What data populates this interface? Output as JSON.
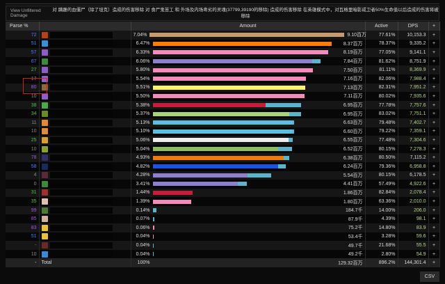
{
  "banner": {
    "view_unfiltered": "View Unfiltered Damage",
    "message": "对 蹒跚的血僵尸（除了坦克）造成的伤害移除 对 食尸鬼苦工 和 外场及内场卑劣的灵魂(37799,39190的移除) 造成的伤害移除 在英雄模式中，对瓦格里暗影戒卫者50%生命值以后造成的伤害将被移除"
  },
  "headers": {
    "parse": "Parse %",
    "amount": "Amount",
    "active": "Active",
    "dps": "DPS",
    "plus": "+"
  },
  "colors": {
    "pet": "#5bb4cc",
    "blue": "#4a7fff",
    "green": "#4cc34c",
    "purple": "#a05ee0",
    "gray": "#888"
  },
  "max_amount": 9.1,
  "rows": [
    {
      "parse": "72",
      "pc": "blue",
      "icon": "#b5401c",
      "pct": "7.04%",
      "amount": "9.10百万",
      "val": 9.1,
      "color": "#c69b6d",
      "pet": 0,
      "active": "77.61%",
      "dps": "10,153.3",
      "dg": false
    },
    {
      "parse": "51",
      "pc": "blue",
      "icon": "#3b8ed8",
      "pct": "6.47%",
      "amount": "8.37百万",
      "val": 8.37,
      "color": "#ff7c0a",
      "pet": 0,
      "active": "78.37%",
      "dps": "9,335.2",
      "dg": false
    },
    {
      "parse": "57",
      "pc": "blue",
      "icon": "#8c5fc8",
      "pct": "6.33%",
      "amount": "8.19百万",
      "val": 8.19,
      "color": "#f48cba",
      "pet": 0,
      "active": "77.05%",
      "dps": "9,141.1",
      "dg": false
    },
    {
      "parse": "67",
      "pc": "blue",
      "icon": "#3a8a3a",
      "pct": "6.06%",
      "amount": "7.84百万",
      "val": 7.84,
      "color": "#8f7fd0",
      "pet": 0.05,
      "active": "81.62%",
      "dps": "8,751.9",
      "dg": false
    },
    {
      "parse": "27",
      "pc": "green",
      "icon": "#8c5fc8",
      "pct": "5.80%",
      "amount": "7.50百万",
      "val": 7.5,
      "color": "#f48cba",
      "pet": 0,
      "active": "81.11%",
      "dps": "8,369.9",
      "dg": true
    },
    {
      "parse": "17",
      "pc": "gray",
      "icon": "#8c5fc8",
      "pct": "5.54%",
      "amount": "7.16百万",
      "val": 7.16,
      "color": "#f48cba",
      "pet": 0,
      "active": "82.06%",
      "dps": "7,988.4",
      "dg": true
    },
    {
      "parse": "80",
      "pc": "purple",
      "icon": "#8a6a3a",
      "pct": "5.51%",
      "amount": "7.13百万",
      "val": 7.13,
      "color": "#fff468",
      "pet": 0,
      "active": "82.31%",
      "dps": "7,951.2",
      "dg": true
    },
    {
      "parse": "10",
      "pc": "gray",
      "icon": "#8c5fc8",
      "pct": "5.50%",
      "amount": "7.11百万",
      "val": 7.11,
      "color": "#f48cba",
      "pet": 0,
      "active": "80.02%",
      "dps": "7,935.6",
      "dg": true
    },
    {
      "parse": "38",
      "pc": "green",
      "icon": "#4caa4c",
      "pct": "5.38%",
      "amount": "6.95百万",
      "val": 6.95,
      "color": "#c41e3a",
      "pet": 0.24,
      "active": "77.78%",
      "dps": "7,757.6",
      "dg": true
    },
    {
      "parse": "34",
      "pc": "green",
      "icon": "#6a8a2a",
      "pct": "5.37%",
      "amount": "6.95百万",
      "val": 6.95,
      "color": "#aad372",
      "pet": 0.08,
      "active": "83.02%",
      "dps": "7,751.1",
      "dg": true
    },
    {
      "parse": "11",
      "pc": "gray",
      "icon": "#e08a3a",
      "pct": "5.13%",
      "amount": "6.63百万",
      "val": 6.63,
      "color": "#5bc0e0",
      "pet": 0.01,
      "active": "79.48%",
      "dps": "7,402.7",
      "dg": true
    },
    {
      "parse": "10",
      "pc": "gray",
      "icon": "#e08a3a",
      "pct": "5.10%",
      "amount": "6.60百万",
      "val": 6.6,
      "color": "#5bc0e0",
      "pet": 0.01,
      "active": "79.22%",
      "dps": "7,359.1",
      "dg": true
    },
    {
      "parse": "25",
      "pc": "green",
      "icon": "#d8a030",
      "pct": "5.06%",
      "amount": "6.55百万",
      "val": 6.55,
      "color": "#eeeeee",
      "pet": 0.03,
      "active": "77.48%",
      "dps": "7,304.6",
      "dg": true
    },
    {
      "parse": "10",
      "pc": "gray",
      "icon": "#8aa030",
      "pct": "5.04%",
      "amount": "6.52百万",
      "val": 6.52,
      "color": "#8fbf5a",
      "pet": 0.1,
      "active": "80.15%",
      "dps": "7,278.3",
      "dg": true
    },
    {
      "parse": "78",
      "pc": "purple",
      "icon": "#30306a",
      "pct": "4.93%",
      "amount": "6.38百万",
      "val": 6.38,
      "color": "#ee7a10",
      "pet": 0.04,
      "active": "80.50%",
      "dps": "7,115.2",
      "dg": false
    },
    {
      "parse": "58",
      "pc": "blue",
      "icon": "#1a2a5a",
      "pct": "4.82%",
      "amount": "6.24百万",
      "val": 6.24,
      "color": "#1f52e0",
      "pet": 0.06,
      "active": "79.36%",
      "dps": "6,958.8",
      "dg": true
    },
    {
      "parse": "4",
      "pc": "gray",
      "icon": "#5a2a3a",
      "pct": "4.28%",
      "amount": "5.54百万",
      "val": 5.54,
      "color": "#8f7fd0",
      "pet": 0.2,
      "active": "80.15%",
      "dps": "6,178.5",
      "dg": false
    },
    {
      "parse": "0",
      "pc": "gray",
      "icon": "#3a8a3a",
      "pct": "3.41%",
      "amount": "4.41百万",
      "val": 4.41,
      "color": "#8f7fd0",
      "pet": 0.1,
      "active": "57.49%",
      "dps": "4,922.6",
      "dg": true
    },
    {
      "parse": "31",
      "pc": "green",
      "icon": "#a03030",
      "pct": "1.44%",
      "amount": "1.86百万",
      "val": 1.86,
      "color": "#c41e3a",
      "pet": 0,
      "active": "82.84%",
      "dps": "2,078.4",
      "dg": true
    },
    {
      "parse": "35",
      "pc": "green",
      "icon": "#e0c0b0",
      "pct": "1.39%",
      "amount": "1.80百万",
      "val": 1.8,
      "color": "#f48cba",
      "pet": 0,
      "active": "63.36%",
      "dps": "2,010.0",
      "dg": true
    },
    {
      "parse": "99",
      "pc": "purple",
      "icon": "#4a7a3a",
      "pct": "0.14%",
      "amount": "184.7千",
      "val": 0.1847,
      "color": "#5bb4cc",
      "pet": 0,
      "active": "14.00%",
      "dps": "206.0",
      "dg": true
    },
    {
      "parse": "85",
      "pc": "purple",
      "icon": "#d0b0a0",
      "pct": "0.07%",
      "amount": "87.9千",
      "val": 0.0879,
      "color": "#5bb4cc",
      "pet": 0,
      "active": "4.39%",
      "dps": "98.1",
      "dg": true
    },
    {
      "parse": "83",
      "pc": "purple",
      "icon": "#e8c040",
      "pct": "0.06%",
      "amount": "75.2千",
      "val": 0.0752,
      "color": "#f48cba",
      "pet": 0,
      "active": "14.80%",
      "dps": "83.9",
      "dg": true
    },
    {
      "parse": "51",
      "pc": "blue",
      "icon": "#e8c040",
      "pct": "0.04%",
      "amount": "53.4千",
      "val": 0.0534,
      "color": "#f48cba",
      "pet": 0,
      "active": "3.28%",
      "dps": "59.6",
      "dg": true
    },
    {
      "parse": "-",
      "pc": "gray",
      "icon": "#6a2a2a",
      "pct": "0.04%",
      "amount": "49.7千",
      "val": 0.0497,
      "color": "#5bb4cc",
      "pet": 0,
      "active": "21.68%",
      "dps": "55.5",
      "dg": true
    },
    {
      "parse": "10",
      "pc": "gray",
      "icon": "#3a8ad8",
      "pct": "0.04%",
      "amount": "49.2千",
      "val": 0.0492,
      "color": "#5bb4cc",
      "pet": 0,
      "active": "2.80%",
      "dps": "54.9",
      "dg": true
    }
  ],
  "total": {
    "parse": "-",
    "name": "Total",
    "pct": "100%",
    "amount": "129.32百万",
    "active": "896.2%",
    "dps": "144,301.4",
    "plus": "+"
  },
  "csv": "CSV"
}
